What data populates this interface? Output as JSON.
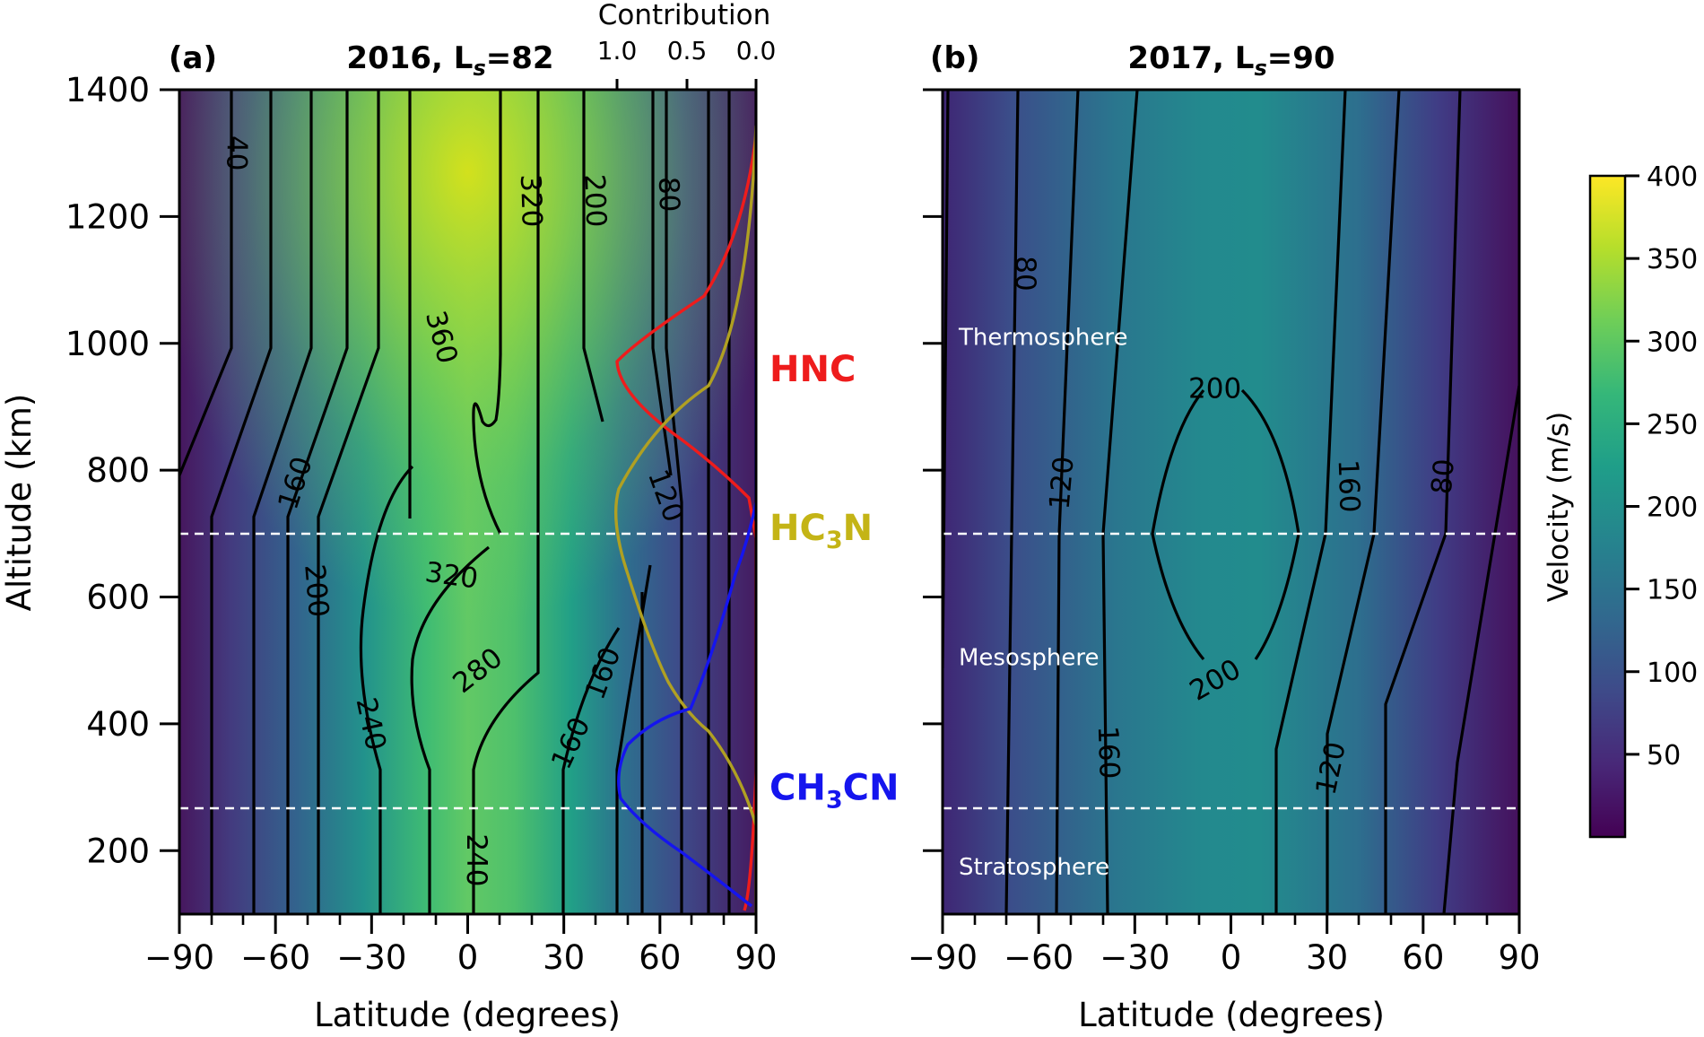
{
  "chart_data": [
    {
      "type": "heatmap",
      "panel": "(a)",
      "title_main": "2016, L",
      "title_sub": "s",
      "title_value": "=82",
      "xlabel": "Latitude (degrees)",
      "ylabel": "Altitude (km)",
      "xlim": [
        -90,
        90
      ],
      "ylim": [
        100,
        1400
      ],
      "xticks": [
        -90,
        -60,
        -30,
        0,
        30,
        60,
        90
      ],
      "xtick_labels": [
        "−90",
        "−60",
        "−30",
        "0",
        "30",
        "60",
        "90"
      ],
      "yticks": [
        200,
        400,
        600,
        800,
        1000,
        1200,
        1400
      ],
      "ytick_labels": [
        "200",
        "400",
        "600",
        "800",
        "1000",
        "1200",
        "1400"
      ],
      "secondary_axis": {
        "label": "Contribution",
        "ticks": [
          1.0,
          0.5,
          0.0
        ],
        "tick_labels": [
          "1.0",
          "0.5",
          "0.0"
        ]
      },
      "layer_boundaries_km": [
        700,
        270
      ],
      "species": [
        {
          "name": "HNC",
          "sub": "",
          "suffix": "",
          "color": "#ee1c1c",
          "label_altitude": 960,
          "peak_altitude": 970
        },
        {
          "name": "HC",
          "sub": "3",
          "suffix": "N",
          "color": "#c4b416",
          "label_altitude": 710,
          "peak_altitude": 720
        },
        {
          "name": "CH",
          "sub": "3",
          "suffix": "CN",
          "color": "#1515ee",
          "label_altitude": 300,
          "peak_altitude": 310
        }
      ],
      "contour_labels": [
        {
          "text": "40",
          "lat": -72,
          "alt": 1300,
          "rot": 90
        },
        {
          "text": "360",
          "lat": -8,
          "alt": 1010,
          "rot": 75
        },
        {
          "text": "320",
          "lat": 20,
          "alt": 1225,
          "rot": 88
        },
        {
          "text": "200",
          "lat": 40,
          "alt": 1225,
          "rot": 88
        },
        {
          "text": "80",
          "lat": 63,
          "alt": 1235,
          "rot": 88
        },
        {
          "text": "160",
          "lat": -54,
          "alt": 780,
          "rot": -72
        },
        {
          "text": "120",
          "lat": 62,
          "alt": 760,
          "rot": 70
        },
        {
          "text": "320",
          "lat": -5,
          "alt": 635,
          "rot": 8
        },
        {
          "text": "200",
          "lat": -47,
          "alt": 610,
          "rot": 85
        },
        {
          "text": "280",
          "lat": 3,
          "alt": 485,
          "rot": -38
        },
        {
          "text": "160",
          "lat": 42,
          "alt": 480,
          "rot": -70
        },
        {
          "text": "240",
          "lat": -30,
          "alt": 400,
          "rot": 78
        },
        {
          "text": "160",
          "lat": 32,
          "alt": 370,
          "rot": -65
        },
        {
          "text": "240",
          "lat": 3,
          "alt": 185,
          "rot": 90
        }
      ]
    },
    {
      "type": "heatmap",
      "panel": "(b)",
      "title_main": "2017, L",
      "title_sub": "s",
      "title_value": "=90",
      "xlabel": "Latitude (degrees)",
      "xlim": [
        -90,
        90
      ],
      "ylim": [
        100,
        1400
      ],
      "xticks": [
        -90,
        -60,
        -30,
        0,
        30,
        60,
        90
      ],
      "xtick_labels": [
        "−90",
        "−60",
        "−30",
        "0",
        "30",
        "60",
        "90"
      ],
      "layer_boundaries_km": [
        700,
        270
      ],
      "layers": [
        {
          "name": "Thermosphere",
          "label_altitude": 1010
        },
        {
          "name": "Mesosphere",
          "label_altitude": 505
        },
        {
          "name": "Stratosphere",
          "label_altitude": 175
        }
      ],
      "contour_labels": [
        {
          "text": "80",
          "lat": -64,
          "alt": 1110,
          "rot": 90
        },
        {
          "text": "120",
          "lat": -53,
          "alt": 780,
          "rot": -85
        },
        {
          "text": "200",
          "lat": -5,
          "alt": 930,
          "rot": 0
        },
        {
          "text": "160",
          "lat": 37,
          "alt": 775,
          "rot": 88
        },
        {
          "text": "80",
          "lat": 66,
          "alt": 790,
          "rot": -85
        },
        {
          "text": "200",
          "lat": -5,
          "alt": 470,
          "rot": -30
        },
        {
          "text": "160",
          "lat": -38,
          "alt": 355,
          "rot": 88
        },
        {
          "text": "120",
          "lat": 31,
          "alt": 330,
          "rot": -78
        }
      ]
    }
  ],
  "colorbar": {
    "label": "Velocity (m/s)",
    "range": [
      0,
      400
    ],
    "ticks": [
      50,
      100,
      150,
      200,
      250,
      300,
      350,
      400
    ],
    "tick_labels": [
      "50",
      "100",
      "150",
      "200",
      "250",
      "300",
      "350",
      "400"
    ],
    "colormap": "viridis",
    "colors": [
      "#440154",
      "#482878",
      "#3e4a89",
      "#31688e",
      "#26828e",
      "#1f9e89",
      "#35b779",
      "#6ece58",
      "#b5de2b",
      "#fde725"
    ]
  }
}
